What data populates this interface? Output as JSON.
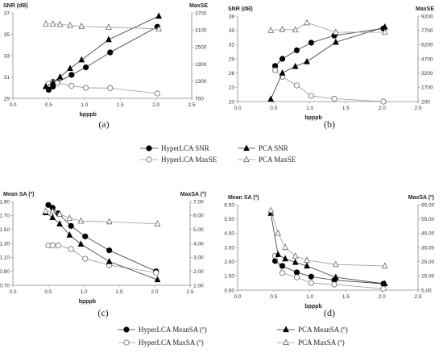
{
  "chart_data": [
    {
      "type": "line",
      "panel_label": "(a)",
      "xlabel": "bpppb",
      "ylabel_left": "SNR (dB)",
      "ylabel_right": "MaxSE",
      "xlim": [
        0.0,
        2.5
      ],
      "xticks": [
        "0.0",
        "0.5",
        "1.0",
        "1.5",
        "2.0",
        "2.5"
      ],
      "ylim_left": [
        29,
        37
      ],
      "yticks_left": [
        "29",
        "31",
        "33",
        "35",
        "37"
      ],
      "ylim_right": [
        700,
        3700
      ],
      "yticks_right": [
        "700",
        "1300",
        "1900",
        "2500",
        "3100",
        "3700"
      ],
      "grid": false,
      "series": [
        {
          "name": "HyperLCA SNR",
          "axis": "left",
          "marker": "circle-filled",
          "x": [
            0.5,
            0.56,
            0.62,
            0.82,
            1.02,
            1.36,
            2.02
          ],
          "y": [
            29.8,
            30.1,
            30.5,
            31.2,
            31.9,
            33.3,
            35.7
          ]
        },
        {
          "name": "HyperLCA MaxSE",
          "axis": "right",
          "marker": "circle-open",
          "x": [
            0.5,
            0.56,
            0.62,
            0.82,
            1.02,
            1.36,
            2.02
          ],
          "y": [
            1210,
            1280,
            1240,
            1140,
            1070,
            1060,
            870
          ]
        },
        {
          "name": "PCA SNR",
          "axis": "left",
          "marker": "triangle-filled",
          "x": [
            0.46,
            0.56,
            0.66,
            0.8,
            0.96,
            1.34,
            2.04
          ],
          "y": [
            30.1,
            30.5,
            31.0,
            31.8,
            32.6,
            34.5,
            36.7
          ]
        },
        {
          "name": "PCA MaxSE",
          "axis": "right",
          "marker": "triangle-open",
          "x": [
            0.46,
            0.56,
            0.66,
            0.8,
            0.96,
            1.34,
            2.04
          ],
          "y": [
            3310,
            3310,
            3300,
            3260,
            3230,
            3200,
            3140
          ]
        }
      ]
    },
    {
      "type": "line",
      "panel_label": "(b)",
      "xlabel": "bpppb",
      "ylabel_left": "SNR (dB)",
      "ylabel_right": "MaxSE",
      "xlim": [
        0.0,
        2.5
      ],
      "xticks": [
        "0.0",
        "0.5",
        "1.0",
        "1.5",
        "2.0",
        "2.5"
      ],
      "ylim_left": [
        20,
        38
      ],
      "yticks_left": [
        "20",
        "23",
        "26",
        "29",
        "32",
        "35",
        "38"
      ],
      "ylim_right": [
        200,
        9200
      ],
      "yticks_right": [
        "200",
        "1700",
        "3200",
        "4700",
        "6200",
        "7700",
        "9200"
      ],
      "grid": false,
      "series": [
        {
          "name": "HyperLCA SNR",
          "axis": "left",
          "marker": "circle-filled",
          "x": [
            0.52,
            0.62,
            0.82,
            1.02,
            1.34,
            2.02
          ],
          "y": [
            27.5,
            29.0,
            30.8,
            32.4,
            33.9,
            35.4
          ]
        },
        {
          "name": "HyperLCA MaxSE",
          "axis": "right",
          "marker": "circle-open",
          "x": [
            0.52,
            0.62,
            0.82,
            1.02,
            1.34,
            2.02
          ],
          "y": [
            3500,
            2800,
            1900,
            800,
            500,
            200
          ]
        },
        {
          "name": "PCA SNR",
          "axis": "left",
          "marker": "triangle-filled",
          "x": [
            0.46,
            0.62,
            0.8,
            0.96,
            1.36,
            2.04
          ],
          "y": [
            20.5,
            26.0,
            27.4,
            28.4,
            32.5,
            35.7
          ]
        },
        {
          "name": "PCA MaxSE",
          "axis": "right",
          "marker": "triangle-open",
          "x": [
            0.46,
            0.62,
            0.8,
            0.96,
            1.36,
            2.04
          ],
          "y": [
            7700,
            7800,
            7750,
            8500,
            7500,
            7500
          ]
        }
      ]
    },
    {
      "type": "line",
      "panel_label": "(c)",
      "xlabel": "bpppb",
      "ylabel_left": "Mean SA (º)",
      "ylabel_right": "MaxSA (º)",
      "xlim": [
        0.0,
        2.5
      ],
      "xticks": [
        "0.0",
        "0.5",
        "1.0",
        "1.5",
        "2.0",
        "2.5"
      ],
      "ylim_left": [
        0.7,
        1.9
      ],
      "yticks_left": [
        "0.70",
        "0.90",
        "1.10",
        "1.30",
        "1.50",
        "1.70",
        "1.90"
      ],
      "ylim_right": [
        1.0,
        7.0
      ],
      "yticks_right": [
        "1.00",
        "2.00",
        "3.00",
        "4.00",
        "5.00",
        "6.00",
        "7.00"
      ],
      "grid": false,
      "series": [
        {
          "name": "HyperLCA MeanSA (º)",
          "axis": "left",
          "marker": "circle-filled",
          "x": [
            0.5,
            0.56,
            0.64,
            0.82,
            1.02,
            1.36,
            2.02
          ],
          "y": [
            1.85,
            1.81,
            1.73,
            1.55,
            1.4,
            1.2,
            0.9
          ]
        },
        {
          "name": "HyperLCA MaxSA (º)",
          "axis": "right",
          "marker": "circle-open",
          "x": [
            0.5,
            0.56,
            0.64,
            0.82,
            1.02,
            1.36,
            2.02
          ],
          "y": [
            3.85,
            3.85,
            3.85,
            3.6,
            2.9,
            2.45,
            1.9
          ]
        },
        {
          "name": "PCA MeanSA (º)",
          "axis": "left",
          "marker": "triangle-filled",
          "x": [
            0.46,
            0.56,
            0.66,
            0.8,
            0.96,
            1.36,
            2.04
          ],
          "y": [
            1.74,
            1.67,
            1.58,
            1.42,
            1.29,
            1.04,
            0.78
          ]
        },
        {
          "name": "PCA MaxSA (º)",
          "axis": "right",
          "marker": "triangle-open",
          "x": [
            0.46,
            0.56,
            0.66,
            0.8,
            0.96,
            1.36,
            2.04
          ],
          "y": [
            6.3,
            6.3,
            6.1,
            5.8,
            5.6,
            5.55,
            5.4
          ]
        }
      ]
    },
    {
      "type": "line",
      "panel_label": "(d)",
      "xlabel": "bpppb",
      "ylabel_left": "Mean SA (º)",
      "ylabel_right": "MaxSA (º)",
      "xlim": [
        0.0,
        2.5
      ],
      "xticks": [
        "0.0",
        "0.5",
        "1.0",
        "1.5",
        "2.0",
        "2.5"
      ],
      "ylim_left": [
        0.5,
        6.5
      ],
      "yticks_left": [
        "0.50",
        "1.50",
        "2.50",
        "3.50",
        "4.50",
        "5.50",
        "6.50"
      ],
      "ylim_right": [
        5,
        65
      ],
      "yticks_right": [
        "5.00",
        "15.00",
        "25.00",
        "35.00",
        "45.00",
        "55.00",
        "65.00"
      ],
      "grid": false,
      "series": [
        {
          "name": "HyperLCA MeanSA (º)",
          "axis": "left",
          "marker": "circle-filled",
          "x": [
            0.52,
            0.62,
            0.82,
            1.02,
            1.34,
            2.02
          ],
          "y": [
            2.55,
            2.2,
            1.75,
            1.45,
            1.2,
            0.95
          ]
        },
        {
          "name": "HyperLCA MaxSA (º)",
          "axis": "right",
          "marker": "circle-open",
          "x": [
            0.52,
            0.62,
            0.82,
            1.02,
            1.34,
            2.02
          ],
          "y": [
            29,
            17,
            14,
            10,
            9,
            6
          ]
        },
        {
          "name": "PCA MeanSA (º)",
          "axis": "left",
          "marker": "triangle-filled",
          "x": [
            0.46,
            0.56,
            0.66,
            0.8,
            0.96,
            1.36,
            2.04
          ],
          "y": [
            5.9,
            3.0,
            2.7,
            2.45,
            2.2,
            1.4,
            0.95
          ]
        },
        {
          "name": "PCA MaxSA (º)",
          "axis": "right",
          "marker": "triangle-open",
          "x": [
            0.46,
            0.56,
            0.66,
            0.8,
            0.96,
            1.36,
            2.04
          ],
          "y": [
            61,
            45,
            35,
            29,
            26,
            23,
            22
          ]
        }
      ]
    }
  ],
  "legends": [
    {
      "items": [
        "HyperLCA SNR",
        "PCA SNR",
        "HyperLCA MaxSE",
        "PCA MaxSE"
      ]
    },
    {
      "items": [
        "HyperLCA MeanSA (º)",
        "PCA MeanSA (º)",
        "HyperLCA MaxSA (º)",
        "PCA MaxSA (º)"
      ]
    }
  ]
}
